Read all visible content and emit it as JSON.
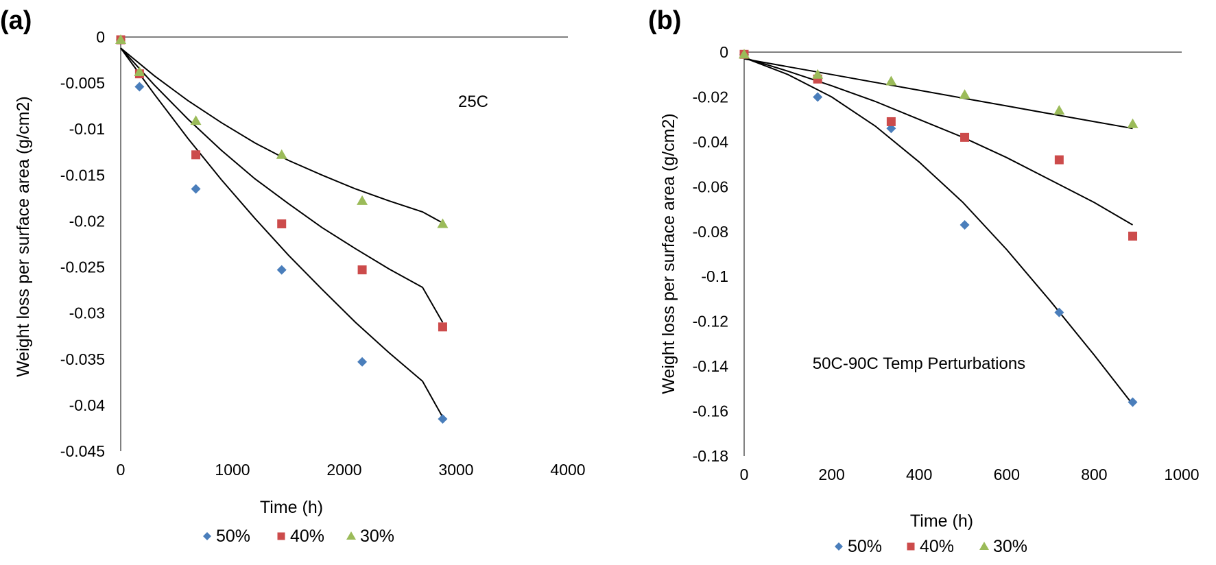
{
  "chart_data": [
    {
      "panel": "(a)",
      "type": "scatter",
      "annotation": "25C",
      "xlabel": "Time (h)",
      "ylabel": "Weight loss per surface area (g/cm2)",
      "xlim": [
        0,
        4000
      ],
      "ylim": [
        -0.045,
        0
      ],
      "xticks": [
        0,
        1000,
        2000,
        3000,
        4000
      ],
      "yticks": [
        0,
        -0.005,
        -0.01,
        -0.015,
        -0.02,
        -0.025,
        -0.03,
        -0.035,
        -0.04,
        -0.045
      ],
      "xtick_labels": [
        "0",
        "1000",
        "2000",
        "3000",
        "4000"
      ],
      "ytick_labels": [
        "0",
        "-0.005",
        "-0.01",
        "-0.015",
        "-0.02",
        "-0.025",
        "-0.03",
        "-0.035",
        "-0.04",
        "-0.045"
      ],
      "legend_position": "bottom",
      "series": [
        {
          "name": "50%",
          "marker": "diamond",
          "color": "#4a7ebb",
          "x": [
            0,
            168,
            672,
            1440,
            2160,
            2880
          ],
          "y": [
            -0.0003,
            -0.0054,
            -0.0165,
            -0.0253,
            -0.0353,
            -0.0415
          ],
          "fit_x": [
            0,
            300,
            600,
            900,
            1200,
            1500,
            1800,
            2100,
            2400,
            2700,
            2880
          ],
          "fit_y": [
            -0.0012,
            -0.0062,
            -0.011,
            -0.0155,
            -0.0197,
            -0.0237,
            -0.0274,
            -0.031,
            -0.0343,
            -0.0374,
            -0.0413
          ]
        },
        {
          "name": "40%",
          "marker": "square",
          "color": "#cc4b4b",
          "x": [
            0,
            168,
            672,
            1440,
            2160,
            2880
          ],
          "y": [
            -0.0003,
            -0.004,
            -0.0128,
            -0.0203,
            -0.0253,
            -0.0315
          ],
          "fit_x": [
            0,
            300,
            600,
            900,
            1200,
            1500,
            1800,
            2100,
            2400,
            2700,
            2880
          ],
          "fit_y": [
            -0.0012,
            -0.0052,
            -0.0089,
            -0.0123,
            -0.0154,
            -0.0181,
            -0.0207,
            -0.023,
            -0.0252,
            -0.0272,
            -0.031
          ]
        },
        {
          "name": "30%",
          "marker": "triangle",
          "color": "#9bbb59",
          "x": [
            0,
            168,
            672,
            1440,
            2160,
            2880
          ],
          "y": [
            -0.0003,
            -0.0038,
            -0.0091,
            -0.0128,
            -0.0178,
            -0.0203
          ],
          "fit_x": [
            0,
            300,
            600,
            900,
            1200,
            1500,
            1800,
            2100,
            2400,
            2700,
            2880
          ],
          "fit_y": [
            -0.0012,
            -0.0042,
            -0.0069,
            -0.0093,
            -0.0115,
            -0.0134,
            -0.015,
            -0.0165,
            -0.0178,
            -0.019,
            -0.0202
          ]
        }
      ]
    },
    {
      "panel": "(b)",
      "type": "scatter",
      "annotation": "50C-90C Temp Perturbations",
      "xlabel": "Time (h)",
      "ylabel": "Weight  loss per surface area (g/cm2)",
      "xlim": [
        0,
        1000
      ],
      "ylim": [
        -0.18,
        0
      ],
      "xticks": [
        0,
        200,
        400,
        600,
        800,
        1000
      ],
      "yticks": [
        0,
        -0.02,
        -0.04,
        -0.06,
        -0.08,
        -0.1,
        -0.12,
        -0.14,
        -0.16,
        -0.18
      ],
      "xtick_labels": [
        "0",
        "200",
        "400",
        "600",
        "800",
        "1000"
      ],
      "ytick_labels": [
        "0",
        "-0.02",
        "-0.04",
        "-0.06",
        "-0.08",
        "-0.1",
        "-0.12",
        "-0.14",
        "-0.16",
        "-0.18"
      ],
      "legend_position": "bottom",
      "series": [
        {
          "name": "50%",
          "marker": "diamond",
          "color": "#4a7ebb",
          "x": [
            0,
            168,
            336,
            504,
            720,
            888
          ],
          "y": [
            -0.001,
            -0.02,
            -0.034,
            -0.077,
            -0.116,
            -0.156
          ],
          "fit_x": [
            0,
            100,
            200,
            300,
            400,
            500,
            600,
            700,
            800,
            888
          ],
          "fit_y": [
            -0.0025,
            -0.01,
            -0.02,
            -0.033,
            -0.049,
            -0.067,
            -0.088,
            -0.111,
            -0.135,
            -0.157
          ]
        },
        {
          "name": "40%",
          "marker": "square",
          "color": "#cc4b4b",
          "x": [
            0,
            168,
            336,
            504,
            720,
            888
          ],
          "y": [
            -0.001,
            -0.012,
            -0.031,
            -0.038,
            -0.048,
            -0.082
          ],
          "fit_x": [
            0,
            100,
            200,
            300,
            400,
            500,
            600,
            700,
            800,
            888
          ],
          "fit_y": [
            -0.0025,
            -0.0085,
            -0.015,
            -0.022,
            -0.03,
            -0.038,
            -0.047,
            -0.057,
            -0.067,
            -0.077
          ]
        },
        {
          "name": "30%",
          "marker": "triangle",
          "color": "#9bbb59",
          "x": [
            0,
            168,
            336,
            504,
            720,
            888
          ],
          "y": [
            -0.001,
            -0.01,
            -0.013,
            -0.019,
            -0.026,
            -0.032
          ],
          "fit_x": [
            0,
            100,
            200,
            300,
            400,
            500,
            600,
            700,
            800,
            888
          ],
          "fit_y": [
            -0.003,
            -0.0065,
            -0.01,
            -0.0135,
            -0.017,
            -0.0205,
            -0.024,
            -0.0275,
            -0.031,
            -0.034
          ]
        }
      ]
    }
  ]
}
